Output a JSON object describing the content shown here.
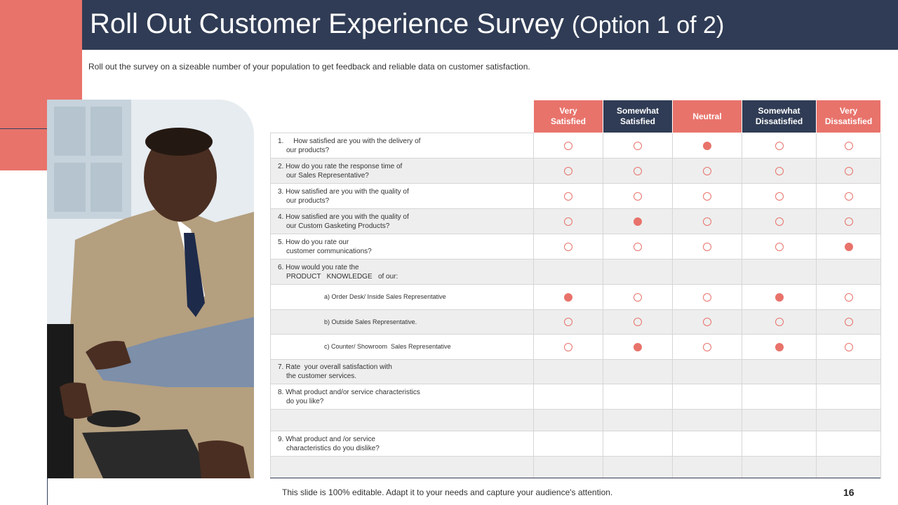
{
  "title": {
    "main": "Roll Out Customer Experience Survey",
    "sub": "(Option 1 of 2)"
  },
  "intro": "Roll out the survey on a sizeable number of your population to get feedback and reliable data on customer satisfaction.",
  "columns": [
    {
      "l1": "Very",
      "l2": "Satisfied",
      "color": "#e8736b"
    },
    {
      "l1": "Somewhat",
      "l2": "Satisfied",
      "color": "#303c55"
    },
    {
      "l1": "Neutral",
      "l2": "",
      "color": "#e8736b"
    },
    {
      "l1": "Somewhat",
      "l2": "Dissatisfied",
      "color": "#303c55"
    },
    {
      "l1": "Very",
      "l2": "Dissatisfied",
      "color": "#e8736b"
    }
  ],
  "rows": [
    {
      "l1": "1.     How satisfied are you with the delivery of",
      "l2": "our products?",
      "sel": 2
    },
    {
      "l1": "2. How do you rate the response time of",
      "l2": "our Sales Representative?",
      "sel": -1
    },
    {
      "l1": "3. How satisfied are you with the quality of",
      "l2": "our products?",
      "sel": -1
    },
    {
      "l1": "4. How satisfied are you with the quality of",
      "l2": "our Custom Gasketing Products?",
      "sel": 1
    },
    {
      "l1": "5. How do you rate our",
      "l2": "customer communications?",
      "sel": 4
    },
    {
      "l1": "6. How would you rate the",
      "l2": "PRODUCT   KNOWLEDGE   of our:",
      "sel": null
    },
    {
      "l1": "a) Order Desk/ Inside Sales Representative",
      "sub": true,
      "sel": [
        0,
        3
      ]
    },
    {
      "l1": "b) Outside Sales Representative.",
      "sub": true,
      "sel": -1
    },
    {
      "l1": "c) Counter/ Showroom  Sales Representative",
      "sub": true,
      "sel": [
        1,
        3
      ]
    },
    {
      "l1": "7. Rate  your overall satisfaction with",
      "l2": "the customer services.",
      "sel": null
    },
    {
      "l1": "8. What product and/or service characteristics",
      "l2": "do you like?",
      "sel": null
    },
    {
      "l1": "",
      "sel": null
    },
    {
      "l1": "9. What product and /or service",
      "l2": "characteristics do you dislike?",
      "sel": null
    },
    {
      "l1": "",
      "sel": null
    }
  ],
  "footer": "This slide is 100% editable. Adapt it to your needs and capture your audience's attention.",
  "page_number": "16",
  "colors": {
    "accent": "#e8736b",
    "navy": "#303c55"
  }
}
